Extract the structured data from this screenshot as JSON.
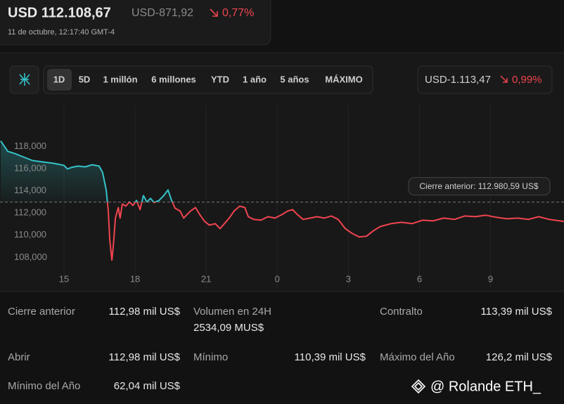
{
  "header": {
    "price": "USD 112.108,67",
    "change": "USD-871,92",
    "change_pct": "0,77%",
    "timestamp": "11 de octubre, 12:17:40 GMT-4"
  },
  "tabs": [
    "1D",
    "5D",
    "1 millón",
    "6 millones",
    "YTD",
    "1 año",
    "5 años",
    "MÁXIMO"
  ],
  "range_change": {
    "change": "USD-1.113,47",
    "change_pct": "0,99%"
  },
  "chart_data": {
    "type": "line",
    "x": [
      12.33,
      12.63,
      12.92,
      13.22,
      13.67,
      14.11,
      14.56,
      15.0,
      15.15,
      15.3,
      15.59,
      15.89,
      16.19,
      16.48,
      16.63,
      16.78,
      16.87,
      16.93,
      17.02,
      17.08,
      17.17,
      17.29,
      17.37,
      17.46,
      17.61,
      17.76,
      17.91,
      18.06,
      18.21,
      18.35,
      18.5,
      18.65,
      18.8,
      19.01,
      19.21,
      19.39,
      19.54,
      19.69,
      19.9,
      20.05,
      20.19,
      20.34,
      20.55,
      20.73,
      20.94,
      21.14,
      21.38,
      21.59,
      21.77,
      21.97,
      22.18,
      22.42,
      22.63,
      22.78,
      23.01,
      23.31,
      23.61,
      23.9,
      24.2,
      24.44,
      24.65,
      24.85,
      25.09,
      25.39,
      25.68,
      25.98,
      26.28,
      26.57,
      26.87,
      27.17,
      27.46,
      27.76,
      28.06,
      28.35,
      28.8,
      29.24,
      29.69,
      30.13,
      30.58,
      31.02,
      31.47,
      31.91,
      32.36,
      32.8,
      33.25,
      33.69,
      34.14,
      34.59,
      35.03,
      35.48,
      35.92,
      36.13
    ],
    "values": [
      118500,
      117560,
      117370,
      117110,
      116730,
      116600,
      116480,
      116290,
      115970,
      116100,
      116230,
      116160,
      116350,
      116230,
      115660,
      114080,
      112180,
      109650,
      107750,
      109010,
      111540,
      112490,
      111540,
      112810,
      112620,
      113000,
      112680,
      113130,
      112300,
      113570,
      113000,
      113320,
      112940,
      113130,
      113570,
      114080,
      113130,
      112430,
      112180,
      111540,
      111860,
      112180,
      112490,
      111860,
      111230,
      110910,
      111040,
      110590,
      111040,
      111540,
      112180,
      112620,
      112490,
      111670,
      111420,
      111350,
      111670,
      111540,
      111860,
      112180,
      112300,
      111860,
      111420,
      111540,
      111670,
      111540,
      111730,
      111420,
      110590,
      110150,
      109840,
      109900,
      110410,
      110780,
      111040,
      111160,
      111040,
      111350,
      111290,
      111540,
      111420,
      111730,
      111670,
      111800,
      111610,
      111480,
      111540,
      111420,
      111670,
      111420,
      111290,
      111230
    ],
    "xlim": [
      12.3,
      36.1
    ],
    "xticks": [
      15,
      18,
      21,
      {
        "value": 24,
        "label": "0"
      },
      {
        "value": 27,
        "label": "3"
      },
      {
        "value": 30,
        "label": "6"
      },
      {
        "value": 33,
        "label": "9"
      }
    ],
    "ylim": [
      106500,
      121700
    ],
    "yticks": [
      {
        "value": 108000,
        "label": "108,000"
      },
      {
        "value": 110000,
        "label": "110,000"
      },
      {
        "value": 112000,
        "label": "112,000"
      },
      {
        "value": 114000,
        "label": "114,000"
      },
      {
        "value": 116000,
        "label": "116,000"
      },
      {
        "value": 118000,
        "label": "118,000"
      }
    ],
    "previous_close": 112980.59,
    "previous_close_label": "Cierre anterior: 112.980,59 US$",
    "colors": {
      "above": "#35c2c9",
      "below": "#f0444f"
    },
    "grid": true
  },
  "stats": [
    {
      "label": "Cierre anterior",
      "value": "112,98 mil US$"
    },
    {
      "label": "Volumen en 24H",
      "value": "2534,09 MUS$"
    },
    {
      "label": "Contralto",
      "value": "113,39 mil US$"
    },
    {
      "label": "Abrir",
      "value": "112,98 mil US$"
    },
    {
      "label": "Mínimo",
      "value": "110,39 mil US$"
    },
    {
      "label": "Máximo del Año",
      "value": "126,2 mil US$"
    },
    {
      "label": "Mínimo del Año",
      "value": "62,04 mil US$"
    }
  ],
  "watermark": "@ Rolande ETH_"
}
